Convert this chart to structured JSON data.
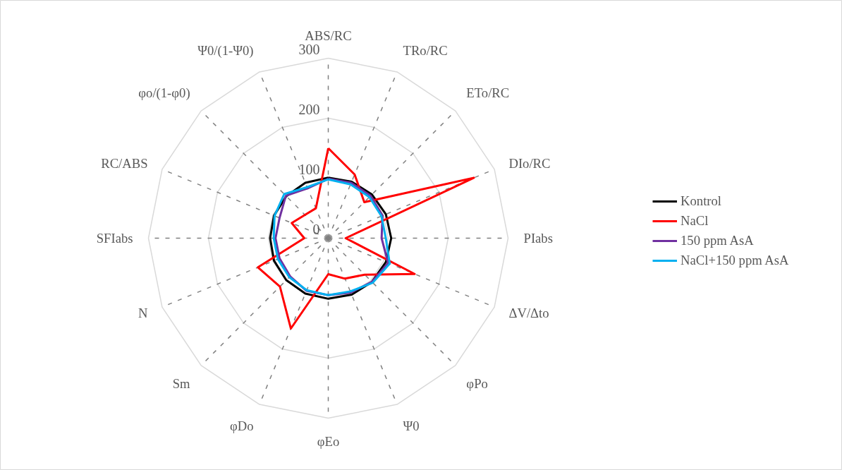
{
  "chart_data": {
    "type": "radar",
    "categories": [
      "ABS/RC",
      "TRo/RC",
      "ETo/RC",
      "DIo/RC",
      "PIabs",
      "ΔV/Δto",
      "φPo",
      "Ψ0",
      "φEo",
      "φDo",
      "Sm",
      "N",
      "SFIabs",
      "RC/ABS",
      "φo/(1-φ0)",
      "Ψ0/(1-Ψ0)"
    ],
    "series": [
      {
        "name": "Kontrol",
        "color": "#000000",
        "values": [
          101,
          102,
          103,
          104,
          105,
          104,
          103,
          102,
          101,
          100,
          99,
          98,
          97,
          98,
          99,
          100
        ]
      },
      {
        "name": "NaCl",
        "color": "#ff0000",
        "values": [
          150,
          115,
          85,
          263,
          29,
          156,
          86,
          73,
          60,
          163,
          114,
          127,
          40,
          66,
          55,
          54
        ]
      },
      {
        "name": "150 ppm AsA",
        "color": "#7030a0",
        "values": [
          99,
          100,
          100,
          98,
          89,
          108,
          103,
          98,
          95,
          95,
          90,
          88,
          88,
          88,
          100,
          90
        ]
      },
      {
        "name": "NaCl+150 ppm AsA",
        "color": "#00b0f0",
        "values": [
          98,
          97,
          97,
          96,
          96,
          111,
          105,
          96,
          95,
          94,
          92,
          91,
          91,
          97,
          104,
          92
        ]
      }
    ],
    "ylim": [
      0,
      300
    ],
    "yticks": [
      0,
      100,
      200,
      300
    ],
    "grid": true,
    "legend": "right"
  }
}
